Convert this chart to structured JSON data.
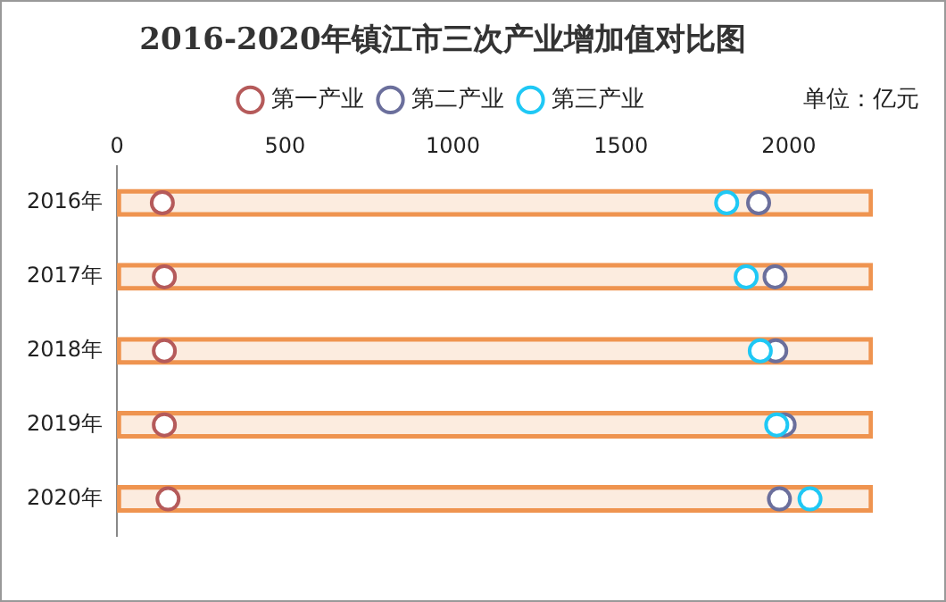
{
  "chart_data": {
    "type": "bar",
    "orientation": "horizontal",
    "title": "2016-2020年镇江市三次产业增加值对比图",
    "categories": [
      "2016年",
      "2017年",
      "2018年",
      "2019年",
      "2020年"
    ],
    "series": [
      {
        "color": "#ef9450",
        "values": [
          2250,
          2250,
          2250,
          2250,
          2250
        ]
      },
      {
        "type": "scatter",
        "name": "第一产业",
        "color": "#b55a5a",
        "values": [
          135,
          141,
          141,
          141,
          152
        ]
      },
      {
        "type": "scatter",
        "name": "第二产业",
        "color": "#6b6f9c",
        "values": [
          1910,
          1959,
          1961,
          1986,
          1972
        ]
      },
      {
        "type": "scatter",
        "name": "第三产业",
        "color": "#1fc8f5",
        "values": [
          1815,
          1873,
          1915,
          1964,
          2063
        ]
      }
    ],
    "xlim": [
      0,
      2250
    ],
    "xticks": [
      0,
      500,
      1000,
      1500,
      2000
    ],
    "grid": false,
    "legend": "top",
    "marker": "circle",
    "annotations": [
      "单位：亿元"
    ]
  }
}
